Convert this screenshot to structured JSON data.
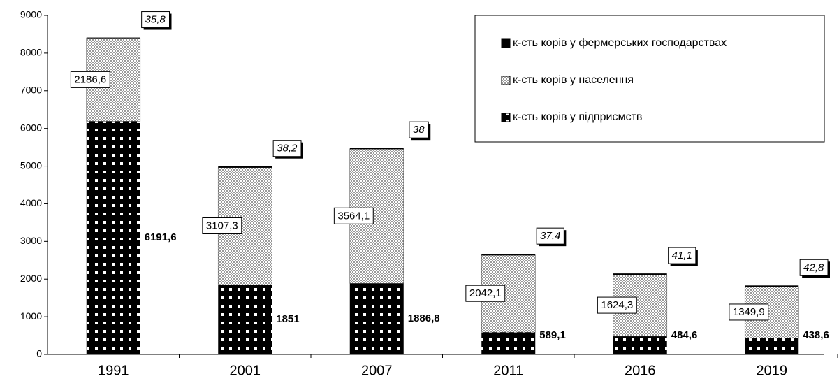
{
  "chart_data": {
    "type": "stacked_bar",
    "categories": [
      "1991",
      "2001",
      "2007",
      "2011",
      "2016",
      "2019"
    ],
    "series": [
      {
        "name": "к-сть корів у підприємств",
        "color": "#000000",
        "pattern": "dots",
        "values": [
          6191.6,
          1851,
          1886.8,
          589.1,
          484.6,
          438.6
        ],
        "value_labels": [
          "6191,6",
          "1851",
          "1886,8",
          "589,1",
          "484,6",
          "438,6"
        ]
      },
      {
        "name": "к-сть корів у населення",
        "color": "#c0c0c0",
        "pattern": "checker",
        "values": [
          2186.6,
          3107.3,
          3564.1,
          2042.1,
          1624.3,
          1349.9
        ],
        "value_labels": [
          "2186,6",
          "3107,3",
          "3564,1",
          "2042,1",
          "1624,3",
          "1349,9"
        ]
      },
      {
        "name": "к-сть корів у фермерських господарствах",
        "color": "#000000",
        "pattern": "solid",
        "values": [
          35.8,
          38.2,
          38,
          37.4,
          41.1,
          42.8
        ],
        "value_labels": [
          "35,8",
          "38,2",
          "38",
          "37,4",
          "41,1",
          "42,8"
        ]
      }
    ],
    "ylim": [
      0,
      9000
    ],
    "yticks": [
      0,
      1000,
      2000,
      3000,
      4000,
      5000,
      6000,
      7000,
      8000,
      9000
    ],
    "grid": false,
    "legend": "upper right"
  }
}
